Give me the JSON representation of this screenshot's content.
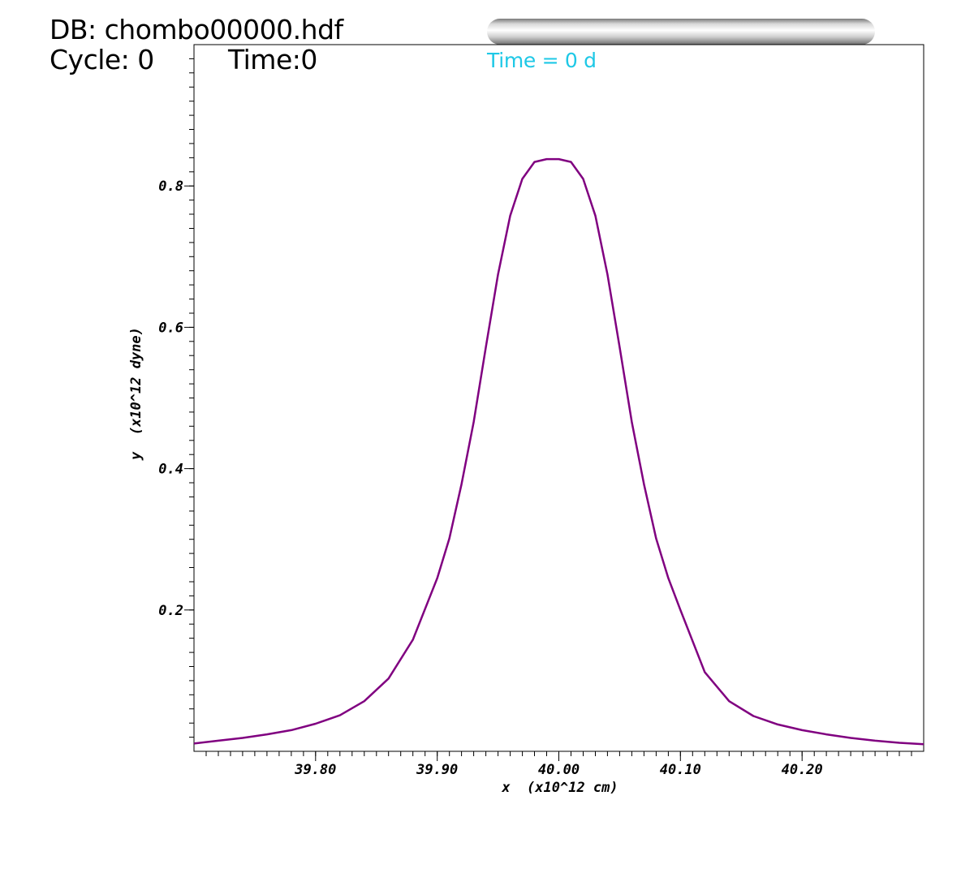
{
  "header": {
    "db": "DB: chombo00000.hdf",
    "cycle": "Cycle: 0",
    "time": "Time:0"
  },
  "annotation": {
    "time_text": "Time = 0 d",
    "color": "#1ec8e6"
  },
  "chart_data": {
    "type": "line",
    "xlabel": "x  (x10^12 cm)",
    "ylabel": "y  (x10^12 dyne)",
    "xlim": [
      39.7,
      40.3
    ],
    "ylim": [
      0.0,
      1.0
    ],
    "xticks": [
      "39.80",
      "39.90",
      "40.00",
      "40.10",
      "40.20"
    ],
    "xtick_values": [
      39.8,
      39.9,
      40.0,
      40.1,
      40.2
    ],
    "yticks": [
      "0.2",
      "0.4",
      "0.6",
      "0.8"
    ],
    "ytick_values": [
      0.2,
      0.4,
      0.6,
      0.8
    ],
    "grid": false,
    "series": [
      {
        "color": "#800080",
        "x": [
          39.7,
          39.72,
          39.74,
          39.76,
          39.78,
          39.8,
          39.82,
          39.84,
          39.86,
          39.88,
          39.9,
          39.91,
          39.92,
          39.93,
          39.94,
          39.95,
          39.96,
          39.97,
          39.98,
          39.99,
          40.0,
          40.01,
          40.02,
          40.03,
          40.04,
          40.05,
          40.06,
          40.07,
          40.08,
          40.09,
          40.1,
          40.12,
          40.14,
          40.16,
          40.18,
          40.2,
          40.22,
          40.24,
          40.26,
          40.28,
          40.3
        ],
        "y": [
          0.011,
          0.015,
          0.019,
          0.024,
          0.03,
          0.039,
          0.051,
          0.071,
          0.103,
          0.158,
          0.245,
          0.301,
          0.378,
          0.466,
          0.572,
          0.675,
          0.758,
          0.81,
          0.834,
          0.838,
          0.838,
          0.834,
          0.81,
          0.758,
          0.675,
          0.572,
          0.466,
          0.378,
          0.301,
          0.245,
          0.2,
          0.112,
          0.071,
          0.05,
          0.038,
          0.03,
          0.024,
          0.019,
          0.015,
          0.012,
          0.01
        ]
      }
    ]
  }
}
